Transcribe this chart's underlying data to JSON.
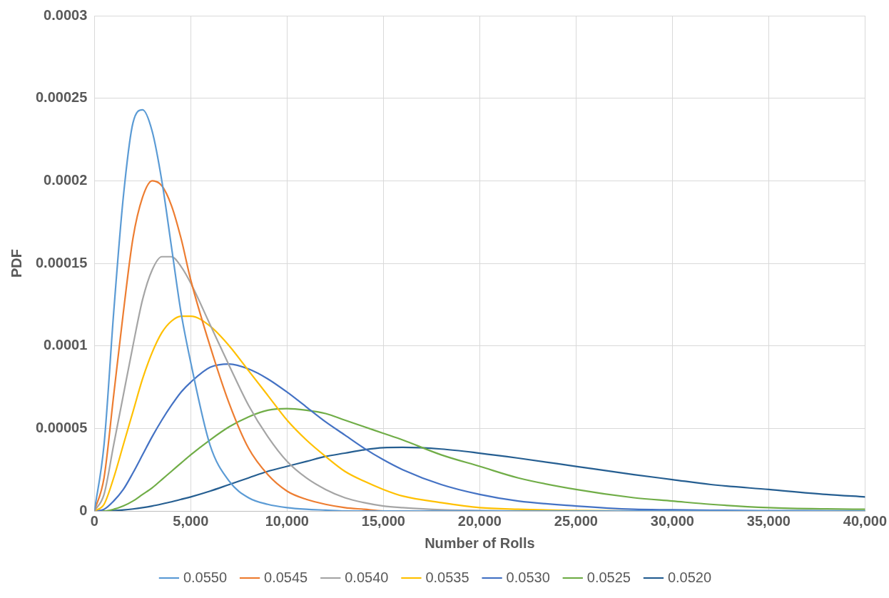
{
  "chart_data": {
    "type": "line",
    "xlabel": "Number of Rolls",
    "ylabel": "PDF",
    "x": [
      0,
      500,
      1000,
      1500,
      2000,
      2500,
      3000,
      3500,
      4000,
      4500,
      5000,
      6000,
      7000,
      8000,
      9000,
      10000,
      11000,
      12000,
      13000,
      14000,
      15000,
      16000,
      18000,
      20000,
      22000,
      25000,
      28000,
      30000,
      32000,
      35000,
      38000,
      40000
    ],
    "series": [
      {
        "name": "0.0550",
        "color": "#5b9bd5",
        "values": [
          0,
          4e-05,
          0.00012,
          0.00019,
          0.000235,
          0.000243,
          0.00023,
          0.0002,
          0.00016,
          0.00012,
          9e-05,
          4e-05,
          1.8e-05,
          8e-06,
          4e-06,
          2e-06,
          1e-06,
          5e-07,
          0,
          0,
          0,
          0,
          0,
          0,
          0,
          0,
          0,
          0,
          0,
          0,
          0,
          0
        ]
      },
      {
        "name": "0.0545",
        "color": "#ed7d31",
        "values": [
          0,
          2e-05,
          7e-05,
          0.00012,
          0.000165,
          0.00019,
          0.0002,
          0.000197,
          0.000185,
          0.000165,
          0.00014,
          0.0001,
          6.5e-05,
          3.8e-05,
          2.2e-05,
          1.2e-05,
          7e-06,
          4e-06,
          2e-06,
          1e-06,
          0,
          0,
          0,
          0,
          0,
          0,
          null,
          null,
          null,
          null,
          null,
          null
        ]
      },
      {
        "name": "0.0540",
        "color": "#a5a5a5",
        "values": [
          0,
          1e-05,
          4e-05,
          7e-05,
          0.0001,
          0.000128,
          0.000146,
          0.000154,
          0.000154,
          0.000148,
          0.000138,
          0.000113,
          8.8e-05,
          6.4e-05,
          4.5e-05,
          3e-05,
          2e-05,
          1.3e-05,
          8e-06,
          5e-06,
          3e-06,
          2e-06,
          7e-07,
          3e-07,
          0,
          0,
          0,
          0,
          0,
          0,
          0,
          0
        ]
      },
      {
        "name": "0.0535",
        "color": "#ffc000",
        "values": [
          0,
          4e-06,
          2e-05,
          4e-05,
          6e-05,
          8e-05,
          9.6e-05,
          0.000108,
          0.000115,
          0.000118,
          0.000118,
          0.000112,
          0.0001,
          8.5e-05,
          7e-05,
          5.5e-05,
          4.3e-05,
          3.3e-05,
          2.4e-05,
          1.8e-05,
          1.3e-05,
          9e-06,
          5e-06,
          2e-06,
          1e-06,
          3e-07,
          0,
          null,
          null,
          null,
          null,
          null
        ]
      },
      {
        "name": "0.0530",
        "color": "#4472c4",
        "values": [
          0,
          1e-06,
          6e-06,
          1.3e-05,
          2.3e-05,
          3.4e-05,
          4.5e-05,
          5.5e-05,
          6.4e-05,
          7.2e-05,
          7.8e-05,
          8.7e-05,
          8.9e-05,
          8.6e-05,
          8e-05,
          7.2e-05,
          6.3e-05,
          5.4e-05,
          4.6e-05,
          3.8e-05,
          3.1e-05,
          2.5e-05,
          1.6e-05,
          1e-05,
          6e-06,
          3e-06,
          1e-06,
          7e-07,
          4e-07,
          2e-07,
          1e-07,
          0
        ]
      },
      {
        "name": "0.0525",
        "color": "#70ad47",
        "values": [
          0,
          0,
          1e-06,
          3e-06,
          6e-06,
          1e-05,
          1.4e-05,
          1.9e-05,
          2.4e-05,
          2.9e-05,
          3.4e-05,
          4.3e-05,
          5.1e-05,
          5.7e-05,
          6.1e-05,
          6.2e-05,
          6.1e-05,
          5.9e-05,
          5.5e-05,
          5.1e-05,
          4.7e-05,
          4.3e-05,
          3.4e-05,
          2.7e-05,
          2e-05,
          1.3e-05,
          8e-06,
          6e-06,
          4e-06,
          2e-06,
          1.2e-06,
          1e-06
        ]
      },
      {
        "name": "0.0520",
        "color": "#255e91",
        "values": [
          0,
          0,
          2e-07,
          6e-07,
          1.2e-06,
          2e-06,
          3e-06,
          4.2e-06,
          5.5e-06,
          7e-06,
          8.5e-06,
          1.2e-05,
          1.6e-05,
          2e-05,
          2.4e-05,
          2.7e-05,
          3e-05,
          3.3e-05,
          3.5e-05,
          3.7e-05,
          3.83e-05,
          3.85e-05,
          3.75e-05,
          3.5e-05,
          3.2e-05,
          2.7e-05,
          2.2e-05,
          1.9e-05,
          1.6e-05,
          1.3e-05,
          1e-05,
          8.5e-06
        ]
      }
    ],
    "xlim": [
      0,
      40000
    ],
    "xticks": [
      0,
      {
        "value": 5000,
        "label": "5,000"
      },
      {
        "value": 10000,
        "label": "10,000"
      },
      {
        "value": 15000,
        "label": "15,000"
      },
      {
        "value": 20000,
        "label": "20,000"
      },
      {
        "value": 25000,
        "label": "25,000"
      },
      {
        "value": 30000,
        "label": "30,000"
      },
      {
        "value": 35000,
        "label": "35,000"
      },
      {
        "value": 40000,
        "label": "40,000"
      }
    ],
    "ylim": [
      0,
      0.0003
    ],
    "yticks": [
      0,
      {
        "value": 5e-05,
        "label": "0.00005"
      },
      0.0001,
      0.00015,
      0.0002,
      0.00025,
      0.0003
    ],
    "grid": true,
    "legend": "bottom",
    "marker": "none",
    "line_style": "solid"
  }
}
